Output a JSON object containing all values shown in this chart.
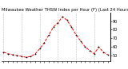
{
  "title": "Milwaukee Weather THSW Index per Hour (F) (Last 24 Hours)",
  "hours": [
    0,
    1,
    2,
    3,
    4,
    5,
    6,
    7,
    8,
    9,
    10,
    11,
    12,
    13,
    14,
    15,
    16,
    17,
    18,
    19,
    20,
    21,
    22,
    23
  ],
  "values": [
    54,
    52,
    51,
    50,
    49,
    48,
    49,
    52,
    58,
    65,
    74,
    83,
    88,
    95,
    91,
    83,
    74,
    67,
    60,
    56,
    52,
    60,
    54,
    51
  ],
  "line_color": "#ff0000",
  "marker_color": "#000000",
  "background_color": "#ffffff",
  "grid_color": "#888888",
  "ylim": [
    44,
    100
  ],
  "ytick_values": [
    50,
    60,
    70,
    80,
    90
  ],
  "ytick_labels": [
    "50",
    "60",
    "70",
    "80",
    "90"
  ],
  "title_fontsize": 3.8,
  "tick_fontsize": 3.5,
  "linewidth": 0.7,
  "markersize": 1.8
}
